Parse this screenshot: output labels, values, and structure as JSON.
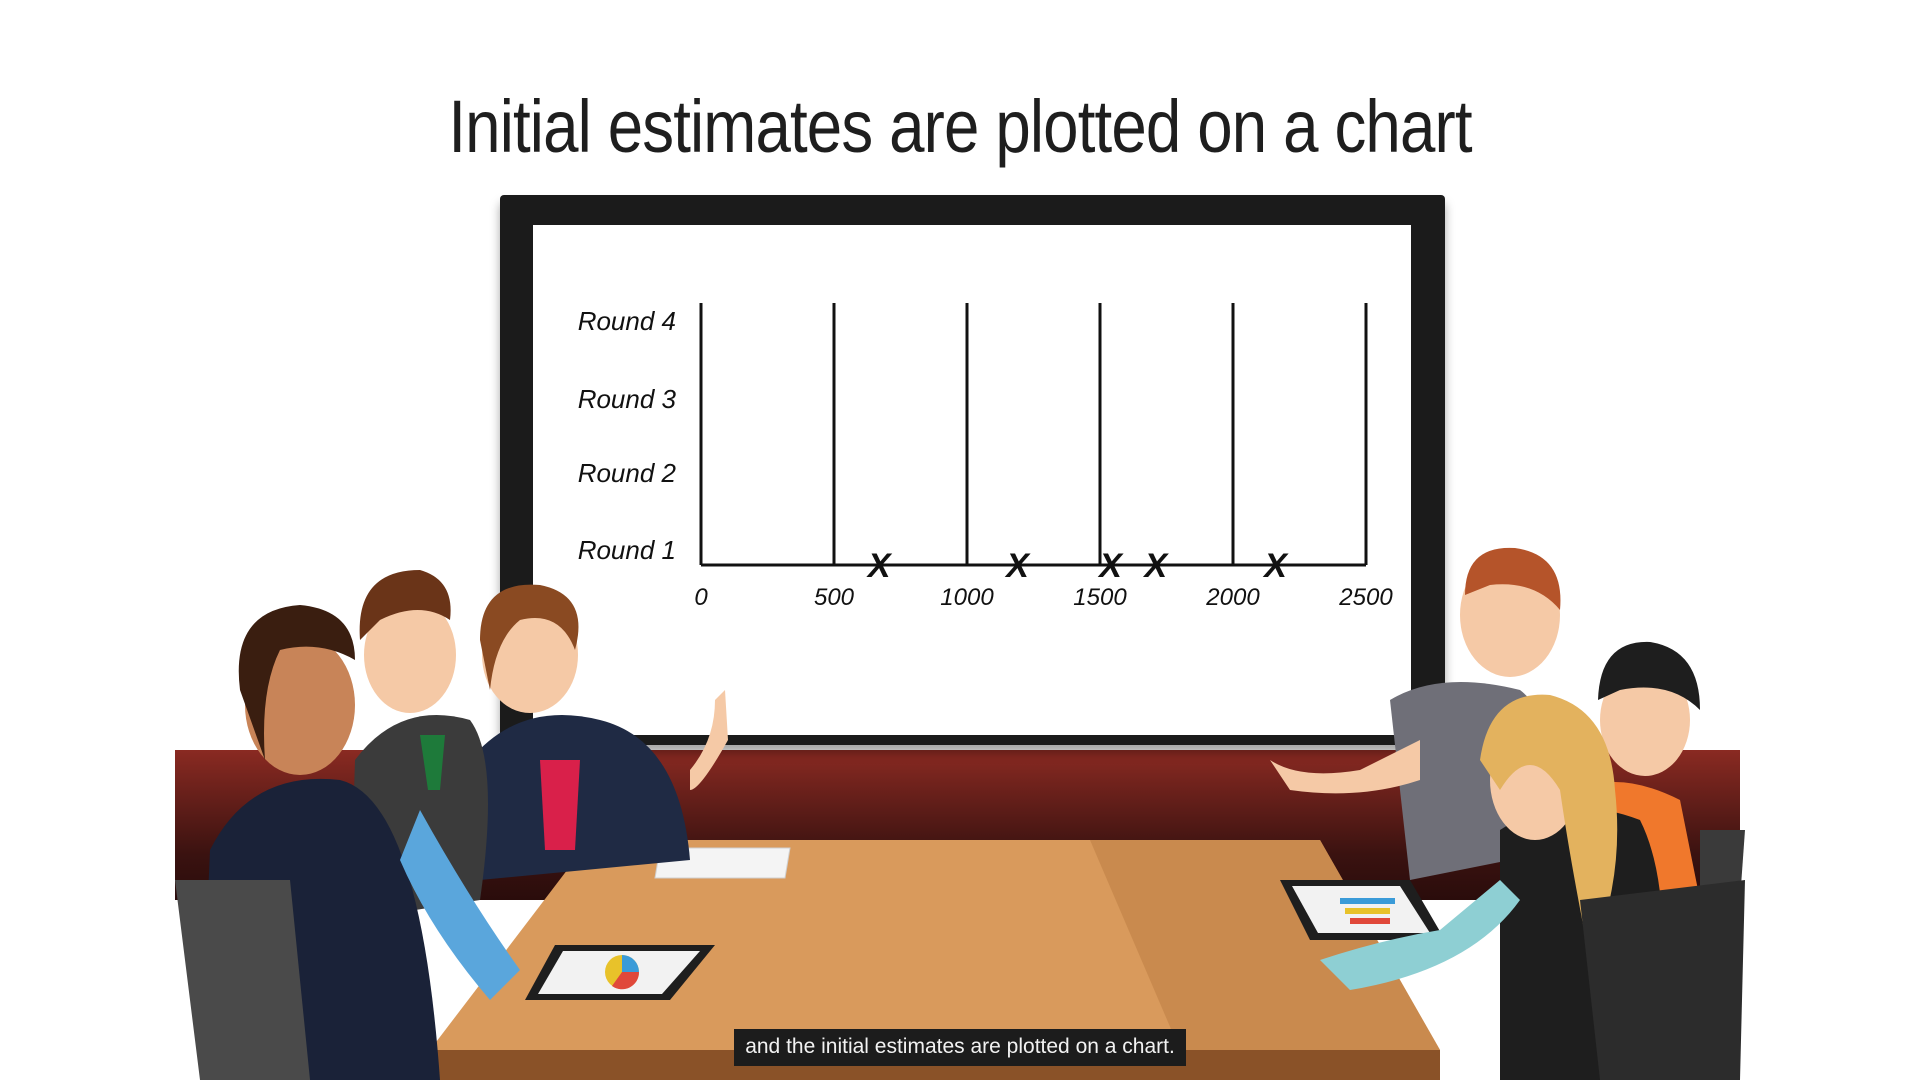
{
  "slide": {
    "headline": "Initial estimates are plotted on a chart",
    "caption": "and the initial estimates are plotted on a chart."
  },
  "chart_data": {
    "type": "scatter",
    "marker": "X",
    "y_categories": [
      "Round 1",
      "Round 2",
      "Round 3",
      "Round 4"
    ],
    "x_ticks": [
      "0",
      "500",
      "1000",
      "1500",
      "2000",
      "2500"
    ],
    "xlim": [
      0,
      2500
    ],
    "gridlines": "vertical",
    "series": [
      {
        "round": "Round 1",
        "x": [
          670,
          1190,
          1540,
          1710,
          2160
        ]
      }
    ]
  },
  "colors": {
    "wall": "#5a1a16",
    "table": "#d99a5c",
    "screen_frame": "#1b1b1b",
    "caption_bg": "#1c1c1c"
  }
}
